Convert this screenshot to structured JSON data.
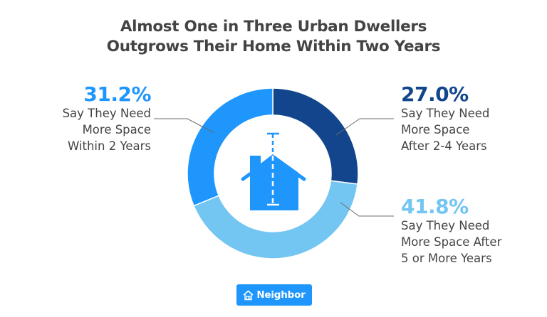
{
  "title": {
    "line1": "Almost One in Three Urban Dwellers",
    "line2": "Outgrows Their Home Within Two Years"
  },
  "labels": {
    "within_2": {
      "pct": "31.2%",
      "line1": "Say They Need",
      "line2": "More Space",
      "line3": "Within 2 Years",
      "color": "#1e96fc"
    },
    "after_2_4": {
      "pct": "27.0%",
      "line1": "Say They Need",
      "line2": "More Space",
      "line3": "After 2-4 Years",
      "color": "#12458c"
    },
    "after_5": {
      "pct": "41.8%",
      "line1": "Say They Need",
      "line2": "More Space After",
      "line3": "5 or More Years",
      "color": "#73c5f2"
    }
  },
  "center_icon": "house-measure-icon",
  "brand": {
    "label": "Neighbor",
    "icon": "house-icon",
    "color": "#1e96fc"
  },
  "chart_data": {
    "type": "pie",
    "variant": "donut",
    "title": "Almost One in Three Urban Dwellers Outgrows Their Home Within Two Years",
    "categories": [
      "Say They Need More Space After 2-4 Years",
      "Say They Need More Space After 5 or More Years",
      "Say They Need More Space Within 2 Years"
    ],
    "values": [
      27.0,
      41.8,
      31.2
    ],
    "unit": "%",
    "colors": [
      "#12458c",
      "#73c5f2",
      "#1e96fc"
    ],
    "start_angle": "12 o'clock",
    "direction": "clockwise",
    "legend": "none (direct labels with leader lines)"
  }
}
